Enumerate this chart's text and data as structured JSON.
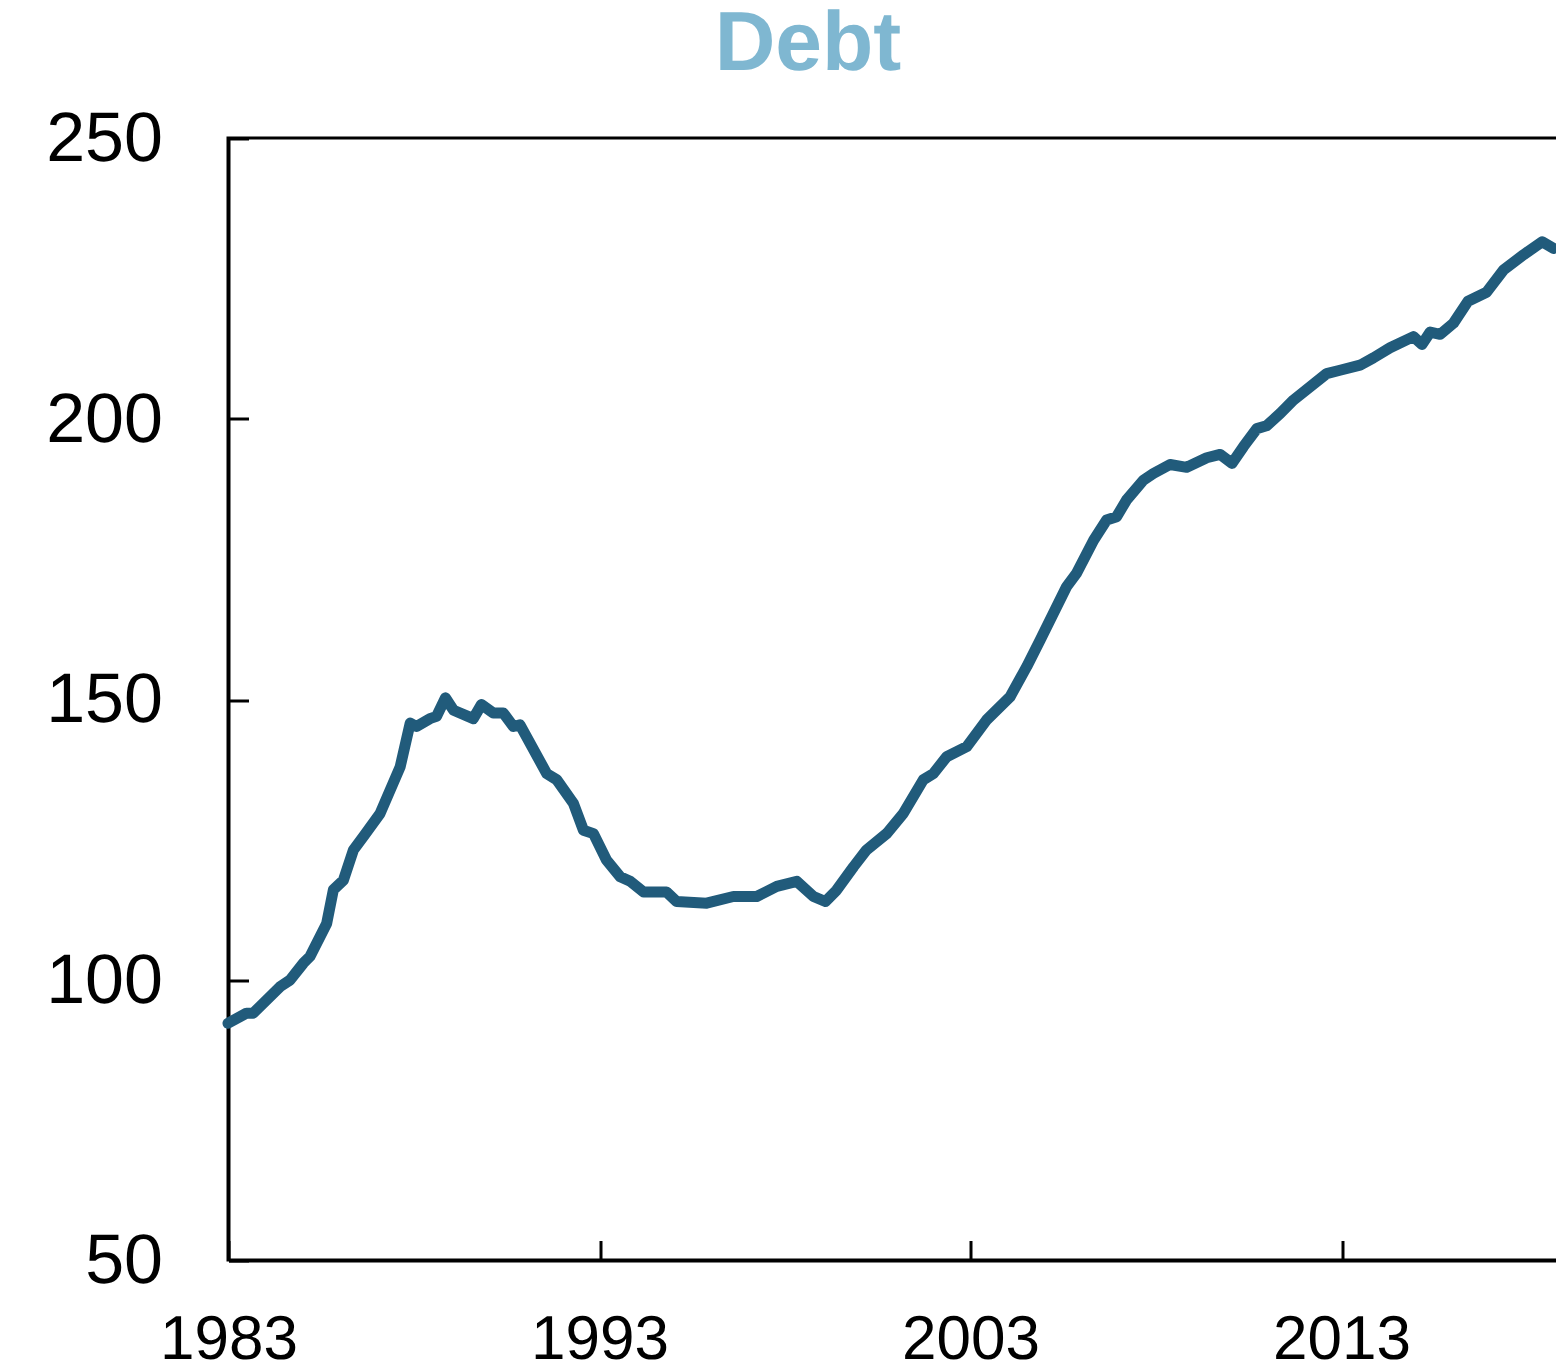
{
  "chart_data": {
    "type": "line",
    "title": "Debt",
    "x": [
      1983.0,
      1983.5,
      1983.68,
      1984.4,
      1984.67,
      1985.03,
      1985.21,
      1985.66,
      1985.84,
      1986.11,
      1986.38,
      1986.65,
      1987.1,
      1987.64,
      1987.91,
      1988.08,
      1988.44,
      1988.62,
      1988.86,
      1989.08,
      1989.61,
      1989.83,
      1990.15,
      1990.42,
      1990.69,
      1990.87,
      1991.59,
      1991.86,
      1992.31,
      1992.58,
      1992.85,
      1993.2,
      1993.57,
      1993.84,
      1994.2,
      1994.82,
      1995.09,
      1995.9,
      1996.62,
      1997.25,
      1997.79,
      1998.33,
      1998.78,
      1999.1,
      1999.4,
      1999.86,
      2000.21,
      2000.75,
      2001.2,
      2001.74,
      2002.01,
      2002.37,
      2002.91,
      2003.45,
      2004.08,
      2004.53,
      2004.89,
      2005.6,
      2005.87,
      2006.33,
      2006.68,
      2006.95,
      2007.22,
      2007.67,
      2007.94,
      2008.39,
      2008.84,
      2009.38,
      2009.74,
      2010.06,
      2010.37,
      2010.73,
      2010.99,
      2011.36,
      2011.72,
      2012.61,
      2012.97,
      2013.51,
      2013.87,
      2014.32,
      2014.95,
      2015.18,
      2015.4,
      2015.67,
      2016.03,
      2016.42,
      2016.92,
      2017.38,
      2017.92,
      2018.42,
      2018.73
    ],
    "series": [
      {
        "color": "#215b7b",
        "values": [
          92.2,
          94.0,
          94.0,
          98.7,
          99.9,
          102.9,
          104.1,
          110.0,
          116.0,
          117.7,
          123.1,
          125.5,
          129.6,
          137.9,
          145.7,
          145.1,
          146.5,
          146.9,
          150.2,
          148.0,
          146.5,
          149.0,
          147.5,
          147.5,
          145.1,
          145.4,
          136.7,
          135.6,
          131.4,
          126.6,
          126.0,
          121.3,
          118.3,
          117.5,
          115.6,
          115.6,
          113.9,
          113.6,
          114.8,
          114.8,
          116.6,
          117.5,
          114.8,
          113.9,
          115.9,
          120.1,
          123.1,
          126.0,
          129.6,
          135.6,
          136.7,
          139.7,
          141.5,
          146.3,
          150.4,
          155.8,
          160.5,
          170.0,
          172.4,
          178.3,
          181.9,
          182.5,
          185.5,
          189.0,
          190.2,
          191.8,
          191.3,
          193.0,
          193.6,
          192.0,
          195.0,
          198.2,
          198.7,
          200.9,
          203.3,
          208.0,
          208.6,
          209.5,
          210.8,
          212.6,
          214.6,
          213.2,
          215.4,
          215.0,
          217.0,
          220.9,
          222.5,
          226.5,
          229.2,
          231.5,
          230.3
        ]
      }
    ],
    "xlim": [
      1983,
      2018.9
    ],
    "ylim": [
      50,
      250
    ],
    "xticks": [
      1983,
      1993,
      2003,
      2013
    ],
    "yticks": [
      50,
      100,
      150,
      200,
      250
    ]
  }
}
